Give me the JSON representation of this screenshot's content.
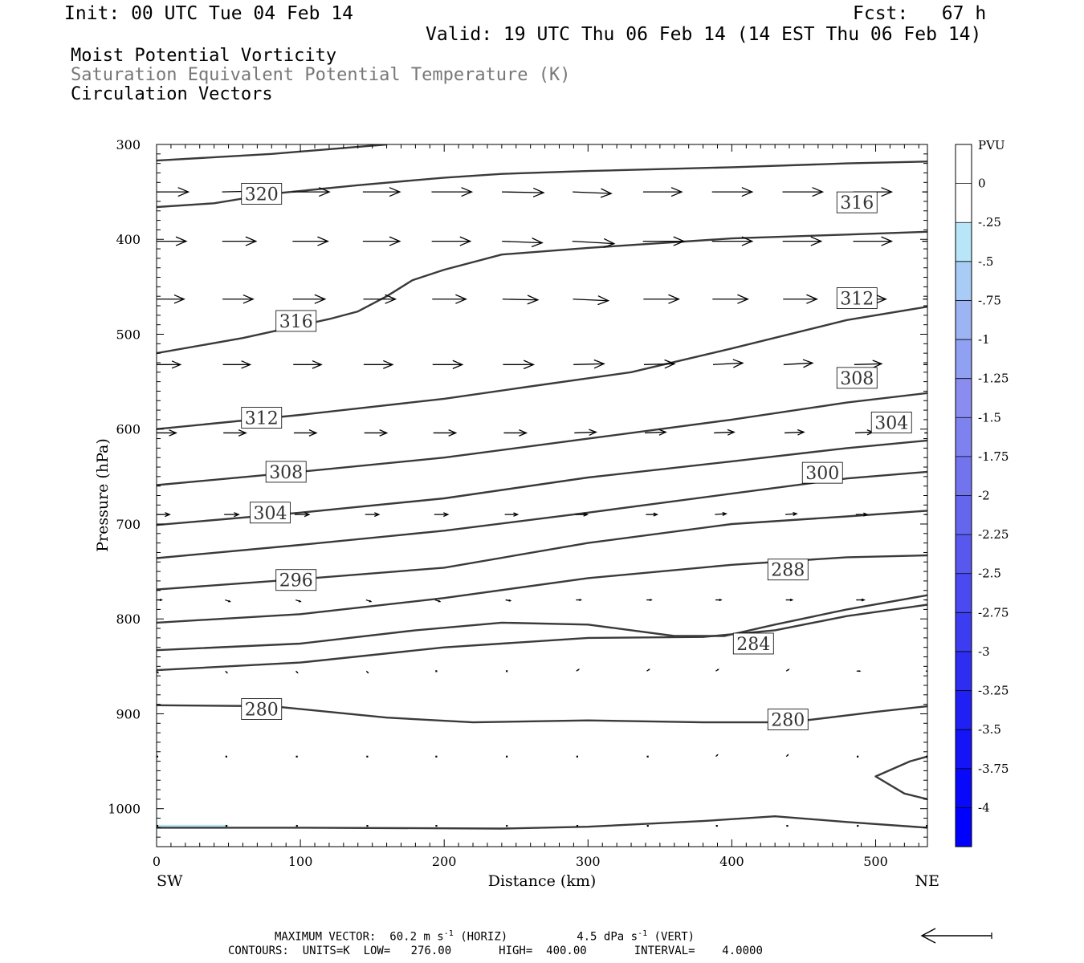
{
  "header": {
    "init": "Init: 00 UTC Tue 04 Feb 14",
    "fcst": "Fcst:   67 h",
    "valid": "Valid: 19 UTC Thu 06 Feb 14 (14 EST Thu 06 Feb 14)",
    "fields": [
      "Moist Potential Vorticity",
      "Saturation Equivalent Potential Temperature (K)",
      "Circulation Vectors"
    ]
  },
  "footer": {
    "max_vector": "MAXIMUM VECTOR:  60.2 m s",
    "horiz_unit": "-1",
    "horiz_label": " (HORIZ)",
    "vert_value": "4.5 dPa s",
    "vert_unit": "-1",
    "vert_label": " (VERT)",
    "contours": "CONTOURS:  UNITS=K  LOW=   276.00       HIGH=  400.00       INTERVAL=    4.0000"
  },
  "colors": {
    "contour": "#3a3a3a",
    "vector": "#000000",
    "light_cyan_fill": "#b8e6f8",
    "colorbar": [
      "#ffffff",
      "#ffffff",
      "#b8e6f8",
      "#a8ccf6",
      "#9cb4f4",
      "#90a0f2",
      "#8a8cf0",
      "#7e82ef",
      "#7274ee",
      "#6566ee",
      "#5858ef",
      "#4a4af0",
      "#3c3cf1",
      "#2e2ef3",
      "#2020f5",
      "#1414f7",
      "#0808fa",
      "#0000fd"
    ]
  },
  "chart_data": {
    "type": "cross-section",
    "ylabel": "Pressure (hPa)",
    "xlabel": "Distance (km)",
    "x_left_label": "SW",
    "x_right_label": "NE",
    "xlim": [
      0,
      536
    ],
    "ylim": [
      1040,
      300
    ],
    "xticks": [
      0,
      100,
      200,
      300,
      400,
      500
    ],
    "yticks": [
      300,
      400,
      500,
      600,
      700,
      800,
      900,
      1000
    ],
    "colorbar": {
      "title": "PVU",
      "ticks": [
        "0",
        "-.25",
        "-.5",
        "-.75",
        "-1",
        "-1.25",
        "-1.5",
        "-1.75",
        "-2",
        "-2.25",
        "-2.5",
        "-2.75",
        "-3",
        "-3.25",
        "-3.5",
        "-3.75",
        "-4"
      ],
      "tick_values": [
        0,
        -0.25,
        -0.5,
        -0.75,
        -1,
        -1.25,
        -1.5,
        -1.75,
        -2,
        -2.25,
        -2.5,
        -2.75,
        -3,
        -3.25,
        -3.5,
        -3.75,
        -4
      ],
      "range": [
        0.25,
        -4.25
      ]
    },
    "contour_labels": [
      {
        "text": "320",
        "x": 73,
        "p": 352
      },
      {
        "text": "316",
        "x": 487,
        "p": 361
      },
      {
        "text": "316",
        "x": 97,
        "p": 486
      },
      {
        "text": "312",
        "x": 487,
        "p": 462
      },
      {
        "text": "312",
        "x": 73,
        "p": 588
      },
      {
        "text": "308",
        "x": 487,
        "p": 546
      },
      {
        "text": "308",
        "x": 90,
        "p": 645
      },
      {
        "text": "304",
        "x": 511,
        "p": 593
      },
      {
        "text": "300",
        "x": 463,
        "p": 646
      },
      {
        "text": "304",
        "x": 79,
        "p": 688
      },
      {
        "text": "288",
        "x": 439,
        "p": 748
      },
      {
        "text": "296",
        "x": 97,
        "p": 759
      },
      {
        "text": "284",
        "x": 415,
        "p": 826
      },
      {
        "text": "280",
        "x": 73,
        "p": 895
      },
      {
        "text": "280",
        "x": 439,
        "p": 906
      }
    ],
    "contours": [
      {
        "points": [
          [
            0,
            317
          ],
          [
            80,
            310
          ],
          [
            160,
            300
          ]
        ]
      },
      {
        "points": [
          [
            0,
            366
          ],
          [
            40,
            362
          ],
          [
            80,
            352
          ],
          [
            140,
            343
          ],
          [
            200,
            335
          ],
          [
            240,
            331
          ],
          [
            300,
            328
          ],
          [
            400,
            324
          ],
          [
            480,
            320
          ],
          [
            536,
            318
          ]
        ]
      },
      {
        "points": [
          [
            0,
            520
          ],
          [
            60,
            504
          ],
          [
            120,
            484
          ],
          [
            140,
            476
          ],
          [
            160,
            460
          ],
          [
            178,
            443
          ],
          [
            200,
            432
          ],
          [
            240,
            416
          ],
          [
            300,
            409
          ],
          [
            400,
            399
          ],
          [
            480,
            395
          ],
          [
            536,
            392
          ]
        ]
      },
      {
        "points": [
          [
            0,
            600
          ],
          [
            100,
            585
          ],
          [
            200,
            568
          ],
          [
            260,
            555
          ],
          [
            330,
            540
          ],
          [
            400,
            515
          ],
          [
            480,
            485
          ],
          [
            536,
            471
          ]
        ]
      },
      {
        "points": [
          [
            0,
            659
          ],
          [
            100,
            645
          ],
          [
            200,
            630
          ],
          [
            300,
            610
          ],
          [
            400,
            590
          ],
          [
            480,
            572
          ],
          [
            536,
            562
          ]
        ]
      },
      {
        "points": [
          [
            0,
            701
          ],
          [
            100,
            688
          ],
          [
            200,
            673
          ],
          [
            300,
            651
          ],
          [
            400,
            634
          ],
          [
            480,
            620
          ],
          [
            536,
            612
          ]
        ]
      },
      {
        "points": [
          [
            0,
            736
          ],
          [
            100,
            722
          ],
          [
            200,
            707
          ],
          [
            300,
            688
          ],
          [
            400,
            668
          ],
          [
            480,
            652
          ],
          [
            536,
            645
          ]
        ]
      },
      {
        "points": [
          [
            0,
            769
          ],
          [
            100,
            758
          ],
          [
            200,
            746
          ],
          [
            300,
            720
          ],
          [
            400,
            700
          ],
          [
            480,
            692
          ],
          [
            536,
            686
          ]
        ]
      },
      {
        "points": [
          [
            0,
            804
          ],
          [
            100,
            795
          ],
          [
            200,
            778
          ],
          [
            300,
            757
          ],
          [
            400,
            743
          ],
          [
            480,
            735
          ],
          [
            536,
            733
          ]
        ]
      },
      {
        "points": [
          [
            0,
            833
          ],
          [
            100,
            826
          ],
          [
            180,
            812
          ],
          [
            240,
            804
          ],
          [
            300,
            806
          ],
          [
            360,
            818
          ],
          [
            395,
            818
          ],
          [
            430,
            806
          ],
          [
            480,
            790
          ],
          [
            536,
            775
          ]
        ]
      },
      {
        "points": [
          [
            0,
            854
          ],
          [
            100,
            846
          ],
          [
            200,
            830
          ],
          [
            300,
            820
          ],
          [
            380,
            819
          ],
          [
            430,
            812
          ],
          [
            480,
            797
          ],
          [
            536,
            785
          ]
        ]
      },
      {
        "points": [
          [
            0,
            891
          ],
          [
            80,
            892
          ],
          [
            160,
            904
          ],
          [
            220,
            909
          ],
          [
            300,
            907
          ],
          [
            380,
            909
          ],
          [
            440,
            909
          ],
          [
            500,
            898
          ],
          [
            536,
            892
          ]
        ]
      },
      {
        "points": [
          [
            0,
            1020
          ],
          [
            100,
            1020
          ],
          [
            240,
            1021
          ],
          [
            300,
            1019
          ],
          [
            380,
            1013
          ],
          [
            430,
            1008
          ],
          [
            480,
            1014
          ],
          [
            536,
            1020
          ]
        ]
      },
      {
        "points": [
          [
            536,
            945
          ],
          [
            524,
            950
          ],
          [
            500,
            966
          ],
          [
            520,
            984
          ],
          [
            536,
            990
          ]
        ]
      }
    ],
    "vectors": [
      {
        "level": 350,
        "xs": [
          0,
          48,
          97,
          146,
          194,
          243,
          292,
          341,
          389,
          438,
          487,
          535
        ],
        "u": [
          44,
          44,
          46,
          46,
          50,
          52,
          48,
          48,
          50,
          50,
          48,
          47
        ],
        "v": [
          0,
          -1,
          0,
          0,
          0,
          1,
          2,
          0,
          0,
          0,
          0,
          0
        ]
      },
      {
        "level": 402,
        "xs": [
          0,
          48,
          97,
          146,
          194,
          243,
          292,
          341,
          389,
          438,
          487,
          535
        ],
        "u": [
          41,
          42,
          44,
          46,
          48,
          50,
          52,
          51,
          50,
          48,
          48,
          48
        ],
        "v": [
          0,
          0,
          0,
          0,
          0,
          2,
          3,
          0,
          0,
          0,
          0,
          0
        ]
      },
      {
        "level": 463,
        "xs": [
          0,
          48,
          97,
          146,
          194,
          243,
          292,
          341,
          389,
          438,
          487,
          535
        ],
        "u": [
          38,
          38,
          40,
          40,
          42,
          44,
          44,
          44,
          44,
          42,
          40,
          38
        ],
        "v": [
          0,
          0,
          0,
          0,
          0,
          1,
          2,
          0,
          0,
          0,
          0,
          0
        ]
      },
      {
        "level": 532,
        "xs": [
          0,
          48,
          97,
          146,
          194,
          243,
          292,
          341,
          389,
          438,
          487,
          535
        ],
        "u": [
          33,
          34,
          35,
          36,
          37,
          38,
          38,
          38,
          37,
          36,
          34,
          33
        ],
        "v": [
          0,
          0,
          0,
          0,
          0,
          0,
          -1,
          -1,
          -2,
          -2,
          -1,
          0
        ]
      },
      {
        "level": 604,
        "xs": [
          0,
          48,
          97,
          146,
          194,
          243,
          292,
          341,
          389,
          438,
          487,
          535
        ],
        "u": [
          27,
          28,
          28,
          28,
          28,
          28,
          27,
          26,
          25,
          24,
          22,
          20
        ],
        "v": [
          0,
          0,
          0,
          0,
          0,
          0,
          -1,
          -1,
          -1,
          -1,
          -1,
          0
        ]
      },
      {
        "level": 690,
        "xs": [
          0,
          48,
          97,
          146,
          194,
          243,
          292,
          341,
          389,
          438,
          487,
          535
        ],
        "u": [
          18,
          18,
          18,
          17,
          17,
          16,
          15,
          14,
          14,
          14,
          14,
          13
        ],
        "v": [
          0,
          0,
          0,
          0,
          0,
          0,
          0,
          0,
          -1,
          -1,
          0,
          0
        ]
      },
      {
        "level": 780,
        "xs": [
          0,
          48,
          97,
          146,
          194,
          243,
          292,
          341,
          389,
          438,
          487,
          535
        ],
        "u": [
          7,
          6,
          6,
          6,
          6,
          6,
          6,
          6,
          7,
          8,
          10,
          9
        ],
        "v": [
          0,
          2,
          2,
          2,
          2,
          1,
          0,
          0,
          0,
          0,
          0,
          0
        ]
      },
      {
        "level": 855,
        "xs": [
          0,
          48,
          97,
          146,
          194,
          243,
          292,
          341,
          389,
          438,
          487,
          535
        ],
        "u": [
          2,
          2,
          2,
          2,
          2,
          2,
          3,
          3,
          3,
          3,
          4,
          3
        ],
        "v": [
          2,
          2,
          2,
          2,
          1,
          0,
          -2,
          -2,
          -2,
          -2,
          0,
          0
        ]
      },
      {
        "level": 945,
        "xs": [
          0,
          48,
          97,
          146,
          194,
          243,
          292,
          341,
          389,
          438,
          487,
          535
        ],
        "u": [
          2,
          2,
          2,
          2,
          2,
          2,
          2,
          2,
          2,
          2,
          2,
          2
        ],
        "v": [
          0,
          0,
          0,
          0,
          0,
          0,
          0,
          -1,
          -2,
          -2,
          -1,
          0
        ]
      },
      {
        "level": 1018,
        "xs": [
          0,
          48,
          97,
          146,
          194,
          243,
          292,
          341,
          389,
          438,
          487,
          535
        ],
        "u": [
          1,
          1,
          1,
          1,
          1,
          1,
          1,
          1,
          1,
          1,
          1,
          1
        ],
        "v": [
          0,
          0,
          0,
          0,
          0,
          0,
          0,
          -1,
          -1,
          -1,
          0,
          0
        ]
      }
    ],
    "pv_shading": [
      {
        "x": [
          0,
          50
        ],
        "p": [
          1017,
          1021
        ],
        "value": -0.35
      }
    ],
    "reference_vector": {
      "direction": "left",
      "description": "reference arrow for maximum vector"
    }
  }
}
